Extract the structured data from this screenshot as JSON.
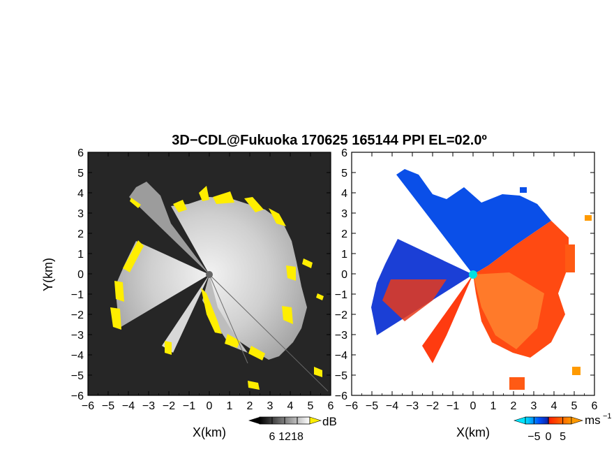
{
  "title": "3D−CDL@Fukuoka 170625 165144 PPI EL=02.0º",
  "chart_data": [
    {
      "type": "heatmap",
      "panel": "reflectivity",
      "xlabel": "X(km)",
      "ylabel": "Y(km)",
      "xlim": [
        -6,
        6
      ],
      "ylim": [
        -6,
        6
      ],
      "xticks": [
        "−6",
        "−5",
        "−4",
        "−3",
        "−2",
        "−1",
        "0",
        "1",
        "2",
        "3",
        "4",
        "5",
        "6"
      ],
      "yticks": [
        "6",
        "5",
        "4",
        "3",
        "2",
        "1",
        "0",
        "−1",
        "−2",
        "−3",
        "−4",
        "−5",
        "−6"
      ],
      "background_color": "#262626",
      "colorbar": {
        "unit": "dB",
        "ticks": [
          "6",
          "12",
          "18"
        ],
        "tick_values": [
          6,
          12,
          18
        ],
        "range": [
          0,
          24
        ],
        "colors": [
          "#000000",
          "#ffffff"
        ],
        "highlight_color": "#ffee00"
      },
      "radar_center": [
        0,
        0
      ]
    },
    {
      "type": "heatmap",
      "panel": "doppler_velocity",
      "xlabel": "X(km)",
      "ylabel": "",
      "xlim": [
        -6,
        6
      ],
      "ylim": [
        -6,
        6
      ],
      "xticks": [
        "−6",
        "−5",
        "−4",
        "−3",
        "−2",
        "−1",
        "0",
        "1",
        "2",
        "3",
        "4",
        "5",
        "6"
      ],
      "yticks": [
        "6",
        "5",
        "4",
        "3",
        "2",
        "1",
        "0",
        "−1",
        "−2",
        "−3",
        "−4",
        "−5",
        "−6"
      ],
      "colorbar": {
        "unit": "ms",
        "unit_exp": "−1",
        "ticks": [
          "−5",
          "0",
          "5"
        ],
        "tick_values": [
          -5,
          0,
          5
        ],
        "range": [
          -8,
          8
        ],
        "colors": [
          "#00e5ff",
          "#0044ee",
          "#ff3300",
          "#ff9900"
        ]
      },
      "radar_center": [
        0,
        0
      ],
      "center_color": "#00e0e0"
    }
  ]
}
